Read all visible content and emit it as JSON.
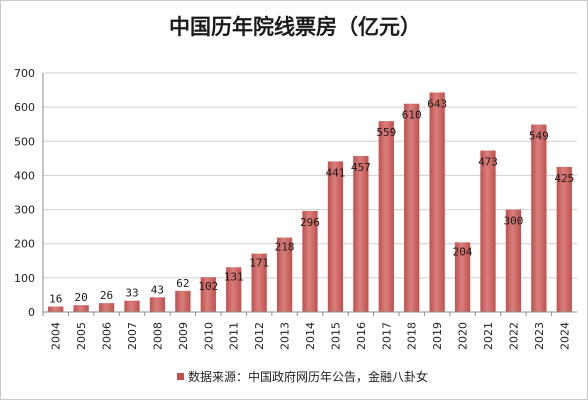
{
  "chart_data": {
    "type": "bar",
    "title": "中国历年院线票房（亿元）",
    "categories": [
      "2004",
      "2005",
      "2006",
      "2007",
      "2008",
      "2009",
      "2010",
      "2011",
      "2012",
      "2013",
      "2014",
      "2015",
      "2016",
      "2017",
      "2018",
      "2019",
      "2020",
      "2021",
      "2022",
      "2023",
      "2024"
    ],
    "series": [
      {
        "name": "数据来源：中国政府网历年公告，金融八卦女",
        "values": [
          16,
          20,
          26,
          33,
          43,
          62,
          102,
          131,
          171,
          218,
          296,
          441,
          457,
          559,
          610,
          643,
          204,
          473,
          300,
          549,
          425
        ],
        "color": "#c0504d"
      }
    ],
    "data_labels": [
      "16",
      "20",
      "26",
      "33",
      "43",
      "62",
      "102",
      "131",
      "171",
      "218",
      "296",
      "441",
      "457",
      "559",
      "610",
      "643",
      "204",
      "473",
      "300",
      "549",
      "425"
    ],
    "ylim": [
      0,
      700
    ],
    "yticks": [
      "0",
      "100",
      "200",
      "300",
      "400",
      "500",
      "600",
      "700"
    ],
    "xlabel": "",
    "ylabel": "",
    "grid": true,
    "legend_position": "bottom",
    "bar_color": "#c0504d",
    "bar_highlight": "#d8807d"
  }
}
